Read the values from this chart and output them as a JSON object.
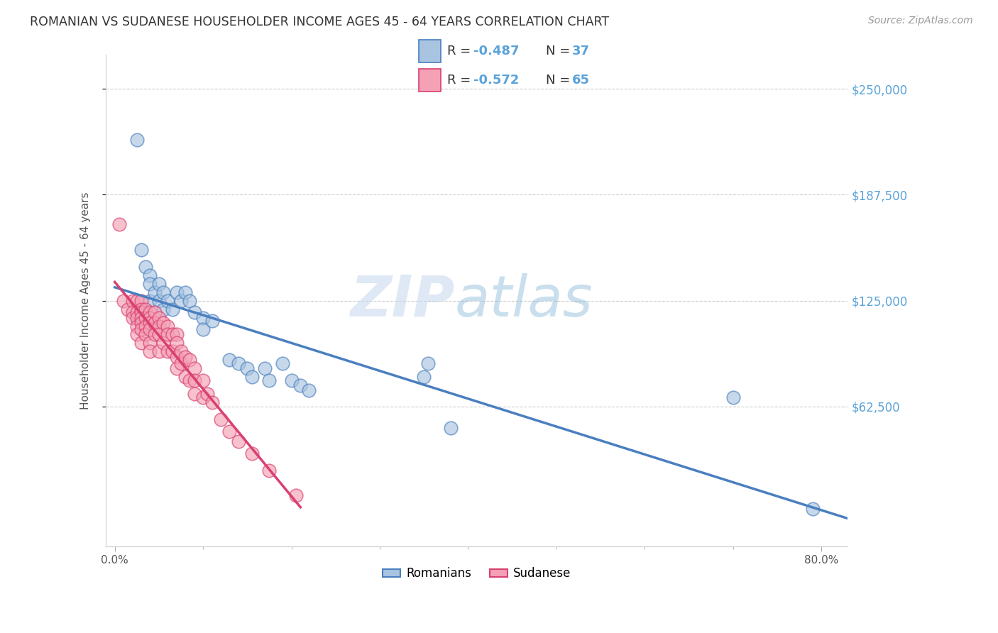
{
  "title": "ROMANIAN VS SUDANESE HOUSEHOLDER INCOME AGES 45 - 64 YEARS CORRELATION CHART",
  "source": "Source: ZipAtlas.com",
  "ylabel": "Householder Income Ages 45 - 64 years",
  "ytick_labels": [
    "$250,000",
    "$187,500",
    "$125,000",
    "$62,500"
  ],
  "ytick_values": [
    250000,
    187500,
    125000,
    62500
  ],
  "ymax": 270000,
  "ymin": -20000,
  "xmax": 0.83,
  "xmin": -0.01,
  "watermark_zip": "ZIP",
  "watermark_atlas": "atlas",
  "romanian_color": "#a8c4e0",
  "sudanese_color": "#f4a0b5",
  "romanian_line_color": "#4a7fc0",
  "sudanese_line_color": "#d94070",
  "right_label_color": "#5ba3d9",
  "legend_R_romanian": "R = -0.487",
  "legend_N_romanian": "N = 37",
  "legend_R_sudanese": "R = -0.572",
  "legend_N_sudanese": "N = 65",
  "romanians_x": [
    0.025,
    0.03,
    0.035,
    0.04,
    0.04,
    0.04,
    0.045,
    0.05,
    0.05,
    0.055,
    0.055,
    0.06,
    0.065,
    0.07,
    0.075,
    0.08,
    0.085,
    0.09,
    0.1,
    0.1,
    0.11,
    0.13,
    0.14,
    0.15,
    0.155,
    0.17,
    0.175,
    0.19,
    0.2,
    0.21,
    0.22,
    0.35,
    0.355,
    0.38,
    0.7,
    0.79,
    0.025
  ],
  "romanians_y": [
    220000,
    155000,
    145000,
    140000,
    135000,
    125000,
    130000,
    135000,
    125000,
    130000,
    120000,
    125000,
    120000,
    130000,
    125000,
    130000,
    125000,
    118000,
    115000,
    108000,
    113000,
    90000,
    88000,
    85000,
    80000,
    85000,
    78000,
    88000,
    78000,
    75000,
    72000,
    80000,
    88000,
    50000,
    68000,
    2000,
    115000
  ],
  "sudanese_x": [
    0.005,
    0.01,
    0.015,
    0.02,
    0.02,
    0.02,
    0.025,
    0.025,
    0.025,
    0.025,
    0.025,
    0.03,
    0.03,
    0.03,
    0.03,
    0.03,
    0.03,
    0.03,
    0.035,
    0.035,
    0.035,
    0.035,
    0.04,
    0.04,
    0.04,
    0.04,
    0.04,
    0.04,
    0.045,
    0.045,
    0.045,
    0.05,
    0.05,
    0.05,
    0.05,
    0.055,
    0.055,
    0.06,
    0.06,
    0.06,
    0.065,
    0.065,
    0.07,
    0.07,
    0.07,
    0.07,
    0.075,
    0.075,
    0.08,
    0.08,
    0.085,
    0.085,
    0.09,
    0.09,
    0.09,
    0.1,
    0.1,
    0.105,
    0.11,
    0.12,
    0.13,
    0.14,
    0.155,
    0.175,
    0.205
  ],
  "sudanese_y": [
    170000,
    125000,
    120000,
    125000,
    118000,
    115000,
    125000,
    118000,
    115000,
    110000,
    105000,
    125000,
    120000,
    118000,
    115000,
    112000,
    108000,
    100000,
    120000,
    115000,
    110000,
    105000,
    118000,
    115000,
    112000,
    108000,
    100000,
    95000,
    118000,
    112000,
    105000,
    115000,
    110000,
    105000,
    95000,
    112000,
    100000,
    110000,
    105000,
    95000,
    105000,
    95000,
    105000,
    100000,
    92000,
    85000,
    95000,
    88000,
    92000,
    80000,
    90000,
    78000,
    85000,
    78000,
    70000,
    78000,
    68000,
    70000,
    65000,
    55000,
    48000,
    42000,
    35000,
    25000,
    10000
  ]
}
